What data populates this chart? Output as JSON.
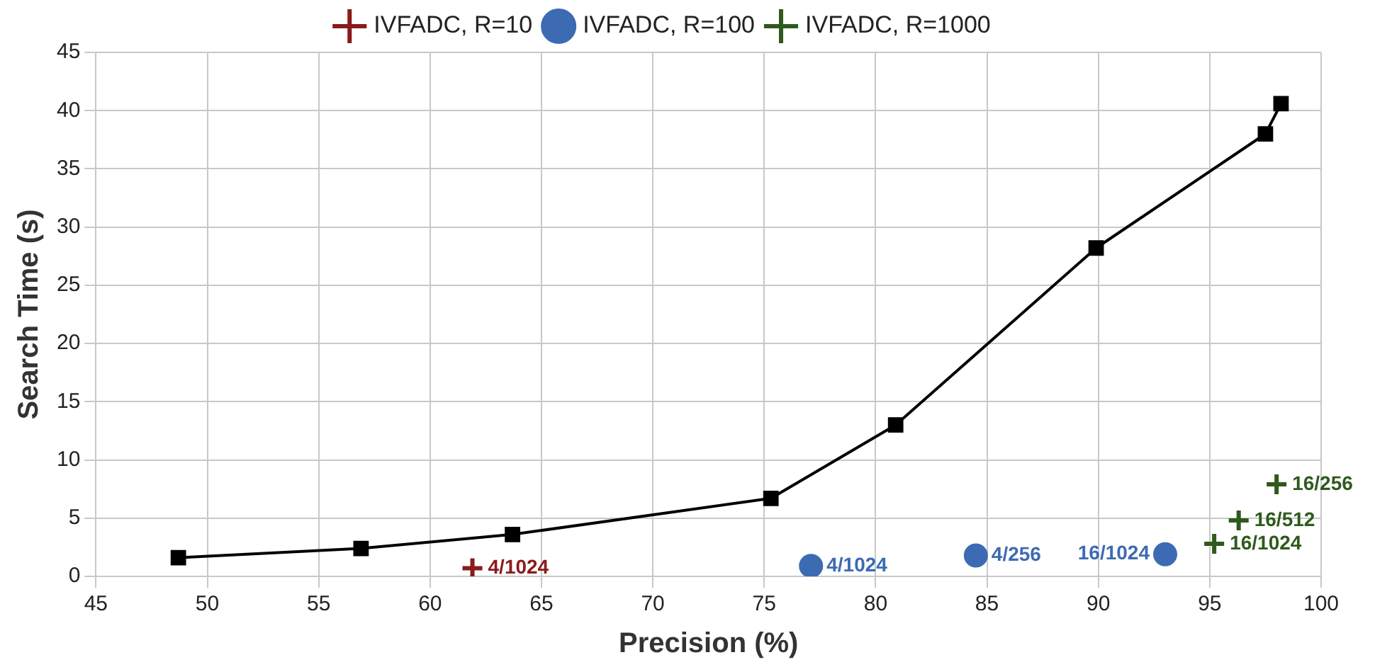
{
  "chart_data": {
    "type": "line",
    "xlabel": "Precision (%)",
    "ylabel": "Search Time (s)",
    "xlim": [
      45,
      100
    ],
    "xticks": [
      45,
      50,
      55,
      60,
      65,
      70,
      75,
      80,
      85,
      90,
      95,
      100
    ],
    "ylim": [
      0,
      45
    ],
    "yticks": [
      0,
      5,
      10,
      15,
      20,
      25,
      30,
      35,
      40,
      45
    ],
    "grid": true,
    "legend": "top",
    "line_style": "solid",
    "series": [
      {
        "marker": "square",
        "color": "#000000",
        "x": [
          48.7,
          56.9,
          63.7,
          75.3,
          80.9,
          89.9,
          97.5,
          98.2
        ],
        "values": [
          1.6,
          2.4,
          3.6,
          6.7,
          13,
          28.2,
          38,
          40.6
        ]
      },
      {
        "type": "scatter",
        "name": "IVFADC, R=10",
        "marker": "cross",
        "color": "#8b1a1a",
        "x": [
          61.9
        ],
        "values": [
          0.7
        ]
      },
      {
        "type": "scatter",
        "name": "IVFADC, R=100",
        "marker": "circle",
        "color": "#3d6bb3",
        "x": [
          77.1,
          84.5,
          93
        ],
        "values": [
          0.9,
          1.8,
          1.9
        ]
      },
      {
        "type": "scatter",
        "name": "IVFADC, R=1000",
        "marker": "cross",
        "color": "#2e5a1c",
        "x": [
          95.2,
          96.3,
          98
        ],
        "values": [
          2.8,
          4.8,
          7.9
        ]
      }
    ],
    "annotations": [
      {
        "text": "4/1024",
        "x": 61.9,
        "y": 0.7
      },
      {
        "text": "4/1024",
        "x": 77.1,
        "y": 0.9
      },
      {
        "text": "4/256",
        "x": 84.5,
        "y": 1.8
      },
      {
        "text": "16/1024",
        "x": 93,
        "y": 1.9
      },
      {
        "text": "16/1024",
        "x": 95.2,
        "y": 2.8
      },
      {
        "text": "16/512",
        "x": 96.3,
        "y": 4.8
      },
      {
        "text": "16/256",
        "x": 98,
        "y": 7.9
      }
    ]
  }
}
